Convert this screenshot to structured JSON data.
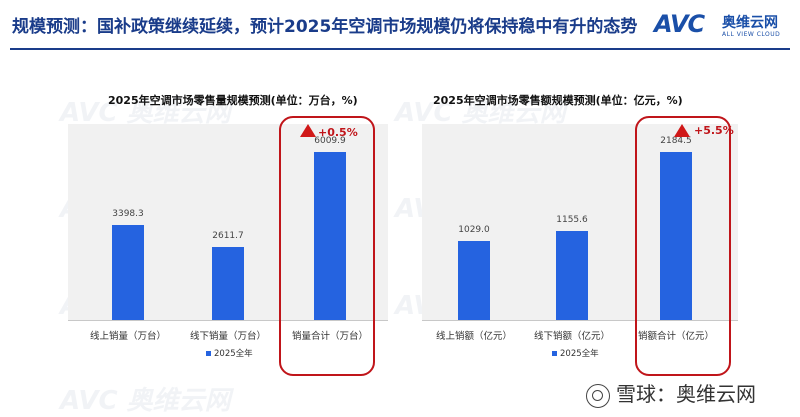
{
  "slide": {
    "title": "规模预测：国补政策继续延续，预计2025年空调市场规模仍将保持稳中有升的态势",
    "logo_text": "AVC",
    "logo_cn": "奥维云网",
    "logo_en": "ALL VIEW CLOUD",
    "footer": "雪球：奥维云网",
    "watermark": "AVC 奥维云网"
  },
  "colors": {
    "bar": "#2563e0",
    "highlight": "#c0151a",
    "title": "#1a3c8a"
  },
  "chart_data": [
    {
      "type": "bar",
      "title": "2025年空调市场零售量规模预测(单位：万台，%)",
      "categories": [
        "线上销量（万台）",
        "线下销量（万台）",
        "销量合计（万台）"
      ],
      "series": [
        {
          "name": "2025全年",
          "values": [
            3398.3,
            2611.7,
            6009.9
          ]
        }
      ],
      "value_labels": [
        "3398.3",
        "2611.7",
        "6009.9"
      ],
      "highlight_index": 2,
      "growth_label": "+0.5%",
      "legend": "2025全年",
      "ylim": [
        0,
        7000
      ]
    },
    {
      "type": "bar",
      "title": "2025年空调市场零售额规模预测(单位：亿元，%)",
      "categories": [
        "线上销额（亿元）",
        "线下销额（亿元）",
        "销额合计（亿元）"
      ],
      "series": [
        {
          "name": "2025全年",
          "values": [
            1029.0,
            1155.6,
            2184.5
          ]
        }
      ],
      "value_labels": [
        "1029.0",
        "1155.6",
        "2184.5"
      ],
      "highlight_index": 2,
      "growth_label": "+5.5%",
      "legend": "2025全年",
      "ylim": [
        0,
        2550
      ]
    }
  ]
}
